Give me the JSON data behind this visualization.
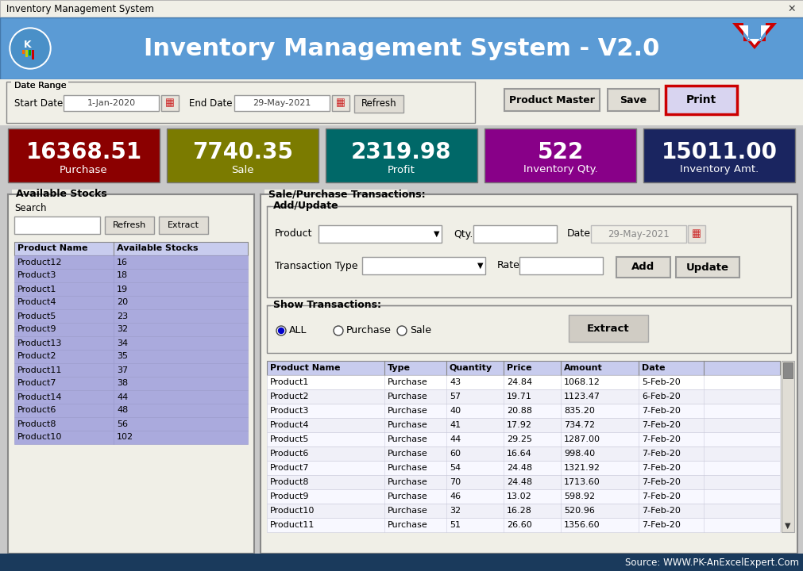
{
  "title_bar_text": "Inventory Management System",
  "header_title": "Inventory Management System - V2.0",
  "header_bg": "#5B9BD5",
  "window_bg": "#F0EFE7",
  "title_bar_bg": "#F0EFE7",
  "summary_boxes": [
    {
      "value": "16368.51",
      "label": "Purchase",
      "bg": "#8B0000",
      "fg": "#FFFFFF"
    },
    {
      "value": "7740.35",
      "label": "Sale",
      "bg": "#7B7B00",
      "fg": "#FFFFFF"
    },
    {
      "value": "2319.98",
      "label": "Profit",
      "bg": "#006868",
      "fg": "#FFFFFF"
    },
    {
      "value": "522",
      "label": "Inventory Qty.",
      "bg": "#880088",
      "fg": "#FFFFFF"
    },
    {
      "value": "15011.00",
      "label": "Inventory Amt.",
      "bg": "#1A2560",
      "fg": "#FFFFFF"
    }
  ],
  "stocks_products": [
    [
      "Product12",
      "16"
    ],
    [
      "Product3",
      "18"
    ],
    [
      "Product1",
      "19"
    ],
    [
      "Product4",
      "20"
    ],
    [
      "Product5",
      "23"
    ],
    [
      "Product9",
      "32"
    ],
    [
      "Product13",
      "34"
    ],
    [
      "Product2",
      "35"
    ],
    [
      "Product11",
      "37"
    ],
    [
      "Product7",
      "38"
    ],
    [
      "Product14",
      "44"
    ],
    [
      "Product6",
      "48"
    ],
    [
      "Product8",
      "56"
    ],
    [
      "Product10",
      "102"
    ]
  ],
  "transactions": [
    [
      "Product1",
      "Purchase",
      "43",
      "24.84",
      "1068.12",
      "5-Feb-20"
    ],
    [
      "Product2",
      "Purchase",
      "57",
      "19.71",
      "1123.47",
      "6-Feb-20"
    ],
    [
      "Product3",
      "Purchase",
      "40",
      "20.88",
      "835.20",
      "7-Feb-20"
    ],
    [
      "Product4",
      "Purchase",
      "41",
      "17.92",
      "734.72",
      "7-Feb-20"
    ],
    [
      "Product5",
      "Purchase",
      "44",
      "29.25",
      "1287.00",
      "7-Feb-20"
    ],
    [
      "Product6",
      "Purchase",
      "60",
      "16.64",
      "998.40",
      "7-Feb-20"
    ],
    [
      "Product7",
      "Purchase",
      "54",
      "24.48",
      "1321.92",
      "7-Feb-20"
    ],
    [
      "Product8",
      "Purchase",
      "70",
      "24.48",
      "1713.60",
      "7-Feb-20"
    ],
    [
      "Product9",
      "Purchase",
      "46",
      "13.02",
      "598.92",
      "7-Feb-20"
    ],
    [
      "Product10",
      "Purchase",
      "32",
      "16.28",
      "520.96",
      "7-Feb-20"
    ],
    [
      "Product11",
      "Purchase",
      "51",
      "26.60",
      "1356.60",
      "7-Feb-20"
    ]
  ],
  "source_text": "Source: WWW.PK-AnExcelExpert.Com",
  "start_date": "1-Jan-2020",
  "end_date": "29-May-2021",
  "date_display": "29-May-2021",
  "stock_list_bg": "#AAAADD",
  "stock_header_bg": "#C8CCEE",
  "trans_row_bg": "#FFFFFF",
  "trans_header_bg": "#C8CCEE"
}
